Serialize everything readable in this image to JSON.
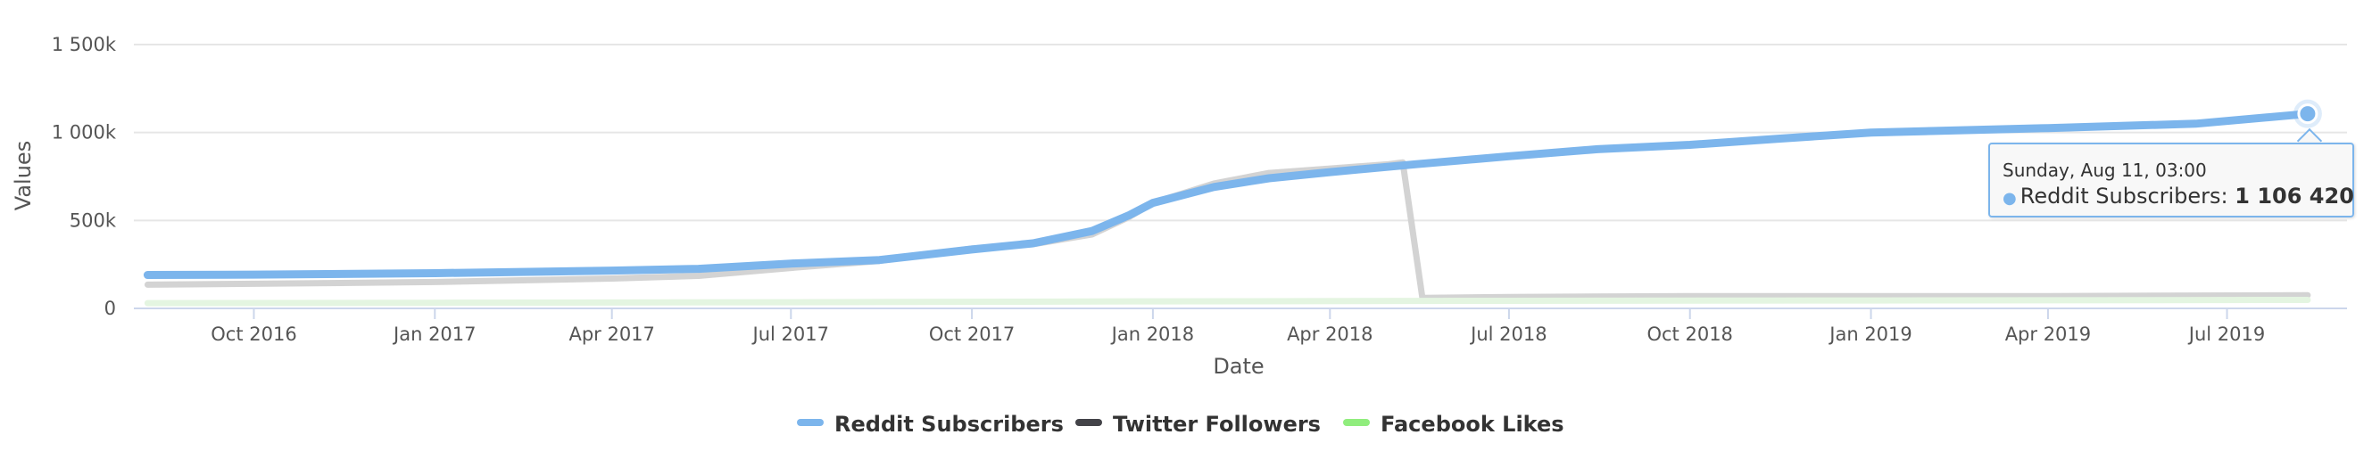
{
  "chart_data": {
    "type": "line",
    "xlabel": "Date",
    "ylabel": "Values",
    "xlim": [
      "2016-08-01",
      "2019-08-31"
    ],
    "ylim": [
      0,
      1500000
    ],
    "y_ticks": [
      0,
      500000,
      1000000,
      1500000
    ],
    "y_tick_labels": [
      "0",
      "500k",
      "1 000k",
      "1 500k"
    ],
    "x_ticks": [
      "2016-10-01",
      "2017-01-01",
      "2017-04-01",
      "2017-07-01",
      "2017-10-01",
      "2018-01-01",
      "2018-04-01",
      "2018-07-01",
      "2018-10-01",
      "2019-01-01",
      "2019-04-01",
      "2019-07-01"
    ],
    "x_tick_labels": [
      "Oct 2016",
      "Jan 2017",
      "Apr 2017",
      "Jul 2017",
      "Oct 2017",
      "Jan 2018",
      "Apr 2018",
      "Jul 2018",
      "Oct 2018",
      "Jan 2019",
      "Apr 2019",
      "Jul 2019"
    ],
    "grid": true,
    "legend_position": "bottom-center",
    "series": [
      {
        "name": "Reddit Subscribers",
        "color": "#7cb5ec",
        "emphasis": "active",
        "points": [
          [
            "2016-08-08",
            190000
          ],
          [
            "2016-10-01",
            192000
          ],
          [
            "2017-01-01",
            200000
          ],
          [
            "2017-04-01",
            215000
          ],
          [
            "2017-05-15",
            225000
          ],
          [
            "2017-07-01",
            255000
          ],
          [
            "2017-08-15",
            275000
          ],
          [
            "2017-10-01",
            335000
          ],
          [
            "2017-11-01",
            370000
          ],
          [
            "2017-12-01",
            440000
          ],
          [
            "2017-12-20",
            530000
          ],
          [
            "2018-01-01",
            600000
          ],
          [
            "2018-02-01",
            690000
          ],
          [
            "2018-03-01",
            740000
          ],
          [
            "2018-04-01",
            775000
          ],
          [
            "2018-05-15",
            820000
          ],
          [
            "2018-07-01",
            865000
          ],
          [
            "2018-08-15",
            905000
          ],
          [
            "2018-10-01",
            930000
          ],
          [
            "2018-11-15",
            965000
          ],
          [
            "2019-01-01",
            1000000
          ],
          [
            "2019-04-01",
            1025000
          ],
          [
            "2019-06-15",
            1050000
          ],
          [
            "2019-08-11",
            1106420
          ]
        ]
      },
      {
        "name": "Twitter Followers",
        "color": "#434348",
        "emphasis": "dimmed",
        "points": [
          [
            "2016-08-08",
            135000
          ],
          [
            "2016-10-01",
            140000
          ],
          [
            "2017-01-01",
            150000
          ],
          [
            "2017-04-01",
            170000
          ],
          [
            "2017-05-15",
            185000
          ],
          [
            "2017-07-01",
            230000
          ],
          [
            "2017-08-15",
            270000
          ],
          [
            "2017-10-01",
            340000
          ],
          [
            "2017-11-01",
            365000
          ],
          [
            "2017-12-01",
            420000
          ],
          [
            "2017-12-20",
            520000
          ],
          [
            "2018-01-01",
            600000
          ],
          [
            "2018-02-01",
            710000
          ],
          [
            "2018-03-01",
            770000
          ],
          [
            "2018-04-01",
            795000
          ],
          [
            "2018-05-01",
            820000
          ],
          [
            "2018-05-08",
            830000
          ],
          [
            "2018-05-18",
            60000
          ],
          [
            "2018-07-01",
            65000
          ],
          [
            "2018-10-01",
            70000
          ],
          [
            "2019-01-01",
            70000
          ],
          [
            "2019-04-01",
            70000
          ],
          [
            "2019-08-11",
            75000
          ]
        ]
      },
      {
        "name": "Facebook Likes",
        "color": "#90ed7d",
        "emphasis": "dimmed",
        "points": [
          [
            "2016-08-08",
            30000
          ],
          [
            "2017-01-01",
            32000
          ],
          [
            "2017-07-01",
            35000
          ],
          [
            "2018-01-01",
            40000
          ],
          [
            "2018-07-01",
            43000
          ],
          [
            "2019-01-01",
            45000
          ],
          [
            "2019-08-11",
            48000
          ]
        ]
      }
    ],
    "tooltip": {
      "series": "Reddit Subscribers",
      "x": "2019-08-11T03:00",
      "date_label": "Sunday, Aug 11, 03:00",
      "series_label": "Reddit Subscribers:",
      "value_label": "1 106 420"
    }
  }
}
